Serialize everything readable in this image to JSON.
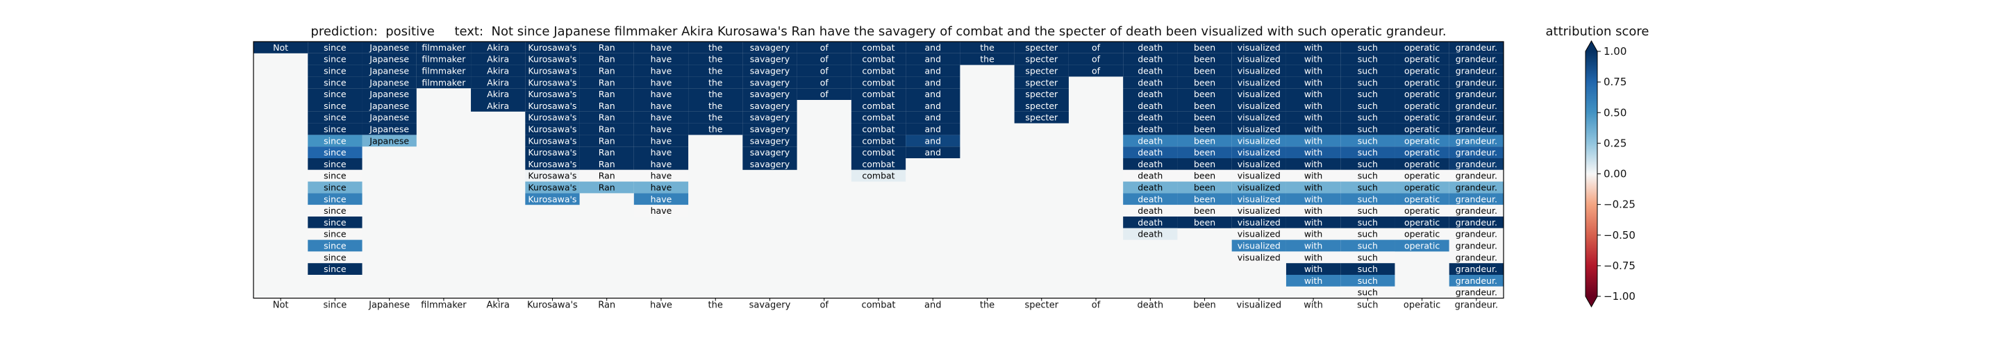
{
  "title": "prediction:  positive     text:  Not since Japanese filmmaker Akira Kurosawa's Ran have the savagery of combat and the specter of death been visualized with such operatic grandeur.",
  "chart_data": {
    "type": "heatmap",
    "title": "prediction:  positive     text:  Not since Japanese filmmaker Akira Kurosawa's Ran have the savagery of combat and the specter of death been visualized with such operatic grandeur.",
    "x_tick_labels": [
      "Not",
      "since",
      "Japanese",
      "filmmaker",
      "Akira",
      "Kurosawa's",
      "Ran",
      "have",
      "the",
      "savagery",
      "of",
      "combat",
      "and",
      "the",
      "specter",
      "of",
      "death",
      "been",
      "visualized",
      "with",
      "such",
      "operatic",
      "grandeur."
    ],
    "rows": [
      [
        1.0,
        1.0,
        1.0,
        1.0,
        1.0,
        1.0,
        1.0,
        1.0,
        1.0,
        1.0,
        1.0,
        1.0,
        1.0,
        1.0,
        1.0,
        1.0,
        1.0,
        1.0,
        1.0,
        1.0,
        1.0,
        1.0,
        1.0
      ],
      [
        null,
        1.0,
        1.0,
        1.0,
        1.0,
        1.0,
        1.0,
        1.0,
        1.0,
        1.0,
        1.0,
        1.0,
        1.0,
        1.0,
        1.0,
        1.0,
        1.0,
        1.0,
        1.0,
        1.0,
        1.0,
        1.0,
        1.0
      ],
      [
        null,
        1.0,
        1.0,
        1.0,
        1.0,
        1.0,
        1.0,
        1.0,
        1.0,
        1.0,
        1.0,
        1.0,
        1.0,
        null,
        1.0,
        1.0,
        1.0,
        1.0,
        1.0,
        1.0,
        1.0,
        1.0,
        1.0
      ],
      [
        null,
        1.0,
        1.0,
        1.0,
        1.0,
        1.0,
        1.0,
        1.0,
        1.0,
        1.0,
        1.0,
        1.0,
        1.0,
        null,
        1.0,
        null,
        1.0,
        1.0,
        1.0,
        1.0,
        1.0,
        1.0,
        1.0
      ],
      [
        null,
        1.0,
        1.0,
        null,
        1.0,
        1.0,
        1.0,
        1.0,
        1.0,
        1.0,
        1.0,
        1.0,
        1.0,
        null,
        1.0,
        null,
        1.0,
        1.0,
        1.0,
        1.0,
        1.0,
        1.0,
        1.0
      ],
      [
        null,
        1.0,
        1.0,
        null,
        1.0,
        1.0,
        1.0,
        1.0,
        1.0,
        1.0,
        null,
        1.0,
        1.0,
        null,
        1.0,
        null,
        1.0,
        1.0,
        1.0,
        1.0,
        1.0,
        1.0,
        1.0
      ],
      [
        null,
        1.0,
        1.0,
        null,
        null,
        1.0,
        1.0,
        1.0,
        1.0,
        1.0,
        null,
        1.0,
        1.0,
        null,
        1.0,
        null,
        1.0,
        1.0,
        1.0,
        1.0,
        1.0,
        1.0,
        1.0
      ],
      [
        null,
        1.0,
        1.0,
        null,
        null,
        1.0,
        1.0,
        1.0,
        1.0,
        1.0,
        null,
        1.0,
        1.0,
        null,
        null,
        null,
        1.0,
        1.0,
        1.0,
        1.0,
        1.0,
        1.0,
        1.0
      ],
      [
        null,
        0.5,
        0.35,
        null,
        null,
        1.0,
        1.0,
        1.0,
        null,
        1.0,
        null,
        1.0,
        0.9,
        null,
        null,
        null,
        0.6,
        0.6,
        0.6,
        0.6,
        0.6,
        0.6,
        0.6
      ],
      [
        null,
        0.75,
        null,
        null,
        null,
        1.0,
        1.0,
        1.0,
        null,
        1.0,
        null,
        1.0,
        1.0,
        null,
        null,
        null,
        0.8,
        0.8,
        0.8,
        0.8,
        0.8,
        0.8,
        0.8
      ],
      [
        null,
        1.0,
        null,
        null,
        null,
        1.0,
        1.0,
        1.0,
        null,
        1.0,
        null,
        1.0,
        null,
        null,
        null,
        null,
        1.0,
        1.0,
        1.0,
        1.0,
        1.0,
        1.0,
        0.95
      ],
      [
        null,
        0.0,
        null,
        null,
        null,
        0.02,
        0.0,
        0.0,
        null,
        null,
        null,
        0.05,
        null,
        null,
        null,
        null,
        0.0,
        0.0,
        0.0,
        0.0,
        0.0,
        0.0,
        0.0
      ],
      [
        null,
        0.35,
        null,
        null,
        null,
        0.35,
        0.35,
        0.35,
        null,
        null,
        null,
        null,
        null,
        null,
        null,
        null,
        0.35,
        0.35,
        0.35,
        0.35,
        0.35,
        0.35,
        0.35
      ],
      [
        null,
        0.6,
        null,
        null,
        null,
        0.6,
        null,
        0.6,
        null,
        null,
        null,
        null,
        null,
        null,
        null,
        null,
        0.6,
        0.6,
        0.6,
        0.6,
        0.6,
        0.6,
        0.6
      ],
      [
        null,
        0.0,
        null,
        null,
        null,
        null,
        null,
        0.0,
        null,
        null,
        null,
        null,
        null,
        null,
        null,
        null,
        0.0,
        0.0,
        0.0,
        0.0,
        0.0,
        0.0,
        0.0
      ],
      [
        null,
        1.0,
        null,
        null,
        null,
        null,
        null,
        null,
        null,
        null,
        null,
        null,
        null,
        null,
        null,
        null,
        1.0,
        1.0,
        1.0,
        1.0,
        1.0,
        1.0,
        1.0
      ],
      [
        null,
        0.0,
        null,
        null,
        null,
        null,
        null,
        null,
        null,
        null,
        null,
        null,
        null,
        null,
        null,
        null,
        0.05,
        null,
        0.0,
        0.0,
        0.0,
        0.0,
        0.0
      ],
      [
        null,
        0.6,
        null,
        null,
        null,
        null,
        null,
        null,
        null,
        null,
        null,
        null,
        null,
        null,
        null,
        null,
        null,
        null,
        0.6,
        0.6,
        0.6,
        0.6,
        0.0
      ],
      [
        null,
        0.0,
        null,
        null,
        null,
        null,
        null,
        null,
        null,
        null,
        null,
        null,
        null,
        null,
        null,
        null,
        null,
        null,
        0.0,
        0.0,
        0.0,
        null,
        0.0
      ],
      [
        null,
        1.0,
        null,
        null,
        null,
        null,
        null,
        null,
        null,
        null,
        null,
        null,
        null,
        null,
        null,
        null,
        null,
        null,
        null,
        1.0,
        1.0,
        null,
        1.0
      ],
      [
        null,
        null,
        null,
        null,
        null,
        null,
        null,
        null,
        null,
        null,
        null,
        null,
        null,
        null,
        null,
        null,
        null,
        null,
        null,
        0.6,
        0.6,
        null,
        0.6
      ],
      [
        null,
        null,
        null,
        null,
        null,
        null,
        null,
        null,
        null,
        null,
        null,
        null,
        null,
        null,
        null,
        null,
        null,
        null,
        null,
        null,
        0.0,
        null,
        0.0
      ]
    ],
    "colorbar": {
      "label": "attribution score",
      "ticks": [
        "1.00",
        "0.75",
        "0.50",
        "0.25",
        "0.00",
        "−0.25",
        "−0.50",
        "−0.75",
        "−1.00"
      ],
      "range": [
        -1.0,
        1.0
      ],
      "colormap": "RdBu"
    }
  }
}
